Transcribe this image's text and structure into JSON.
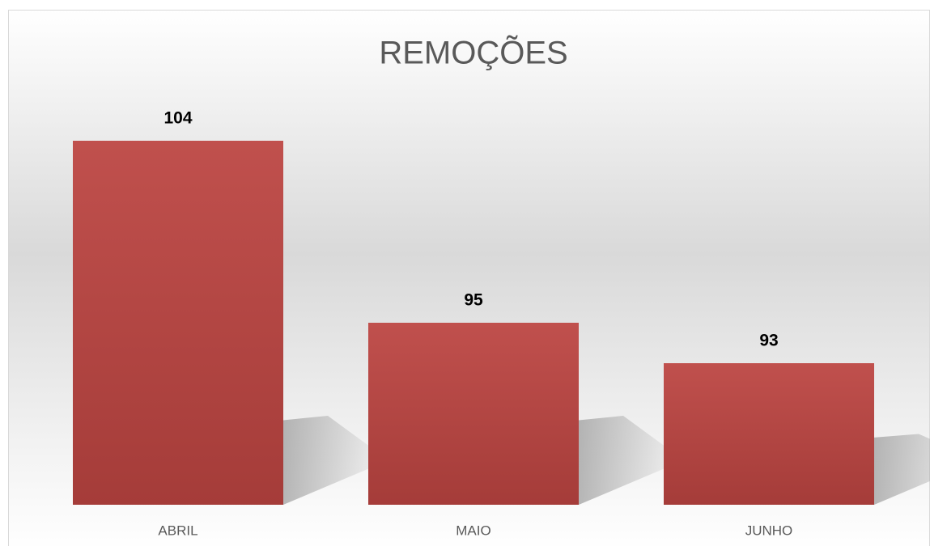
{
  "chart_data": {
    "type": "bar",
    "title": "REMOÇÕES",
    "categories": [
      "ABRIL",
      "MAIO",
      "JUNHO"
    ],
    "values": [
      104,
      95,
      93
    ],
    "color": "#b9484a",
    "ylim": [
      86,
      106
    ],
    "grid": false
  }
}
